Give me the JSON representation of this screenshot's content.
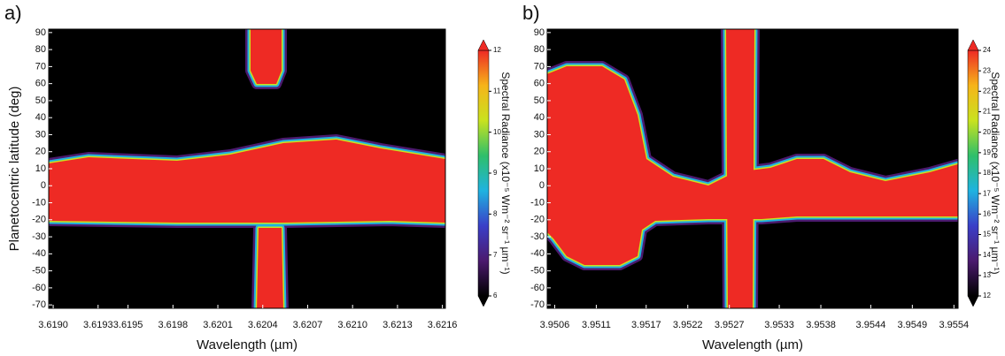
{
  "chart_data": [
    {
      "type": "contour",
      "panel_label": "a)",
      "xlabel": "Wavelength (µm)",
      "ylabel": "Planetocentric latitude (deg)",
      "xlim": [
        3.61897,
        3.62162
      ],
      "ylim": [
        -72,
        92
      ],
      "xticks": [
        {
          "value": 3.619,
          "label": "3.6190"
        },
        3.6193,
        3.6195,
        3.6198,
        3.6201,
        3.6204,
        3.6207,
        {
          "value": 3.621,
          "label": "3.6210"
        },
        3.6213,
        3.6216
      ],
      "yticks": [
        90,
        80,
        70,
        60,
        50,
        40,
        30,
        20,
        10,
        0,
        -10,
        -20,
        -30,
        -40,
        -50,
        -60,
        -70
      ],
      "colorbar": {
        "label": "Spectral Radiance (x10⁻⁵ Wm⁻² sr⁻¹ µm⁻¹)",
        "lim": [
          6,
          12
        ],
        "ticks": [
          6,
          7,
          8,
          9,
          10,
          11,
          12
        ]
      },
      "colormap": [
        "#000000",
        "#4b1a6e",
        "#3a3fc8",
        "#1fb3e0",
        "#2fbf6a",
        "#c9e21f",
        "#f6b41a",
        "#ee2a24"
      ]
    },
    {
      "type": "contour",
      "panel_label": "b)",
      "xlabel": "Wavelength (µm)",
      "xlim": [
        3.95051,
        3.95545
      ],
      "ylim": [
        -72,
        92
      ],
      "xticks": [
        3.9506,
        3.9511,
        3.9517,
        3.9522,
        3.9527,
        3.9533,
        3.9538,
        3.9544,
        3.9549,
        3.9554
      ],
      "yticks": [
        90,
        80,
        70,
        60,
        50,
        40,
        30,
        20,
        10,
        0,
        -10,
        -20,
        -30,
        -40,
        -50,
        -60,
        -70
      ],
      "colorbar": {
        "label": "Spectral Radiance (x10⁻⁵ Wm⁻² sr⁻¹ µm⁻¹)",
        "lim": [
          12,
          24
        ],
        "ticks": [
          12,
          13,
          14,
          15,
          16,
          17,
          18,
          19,
          20,
          21,
          22,
          23,
          24
        ]
      },
      "colormap": [
        "#000000",
        "#4b1a6e",
        "#3a3fc8",
        "#1fb3e0",
        "#2fbf6a",
        "#c9e21f",
        "#f6b41a",
        "#ee2a24"
      ]
    }
  ]
}
